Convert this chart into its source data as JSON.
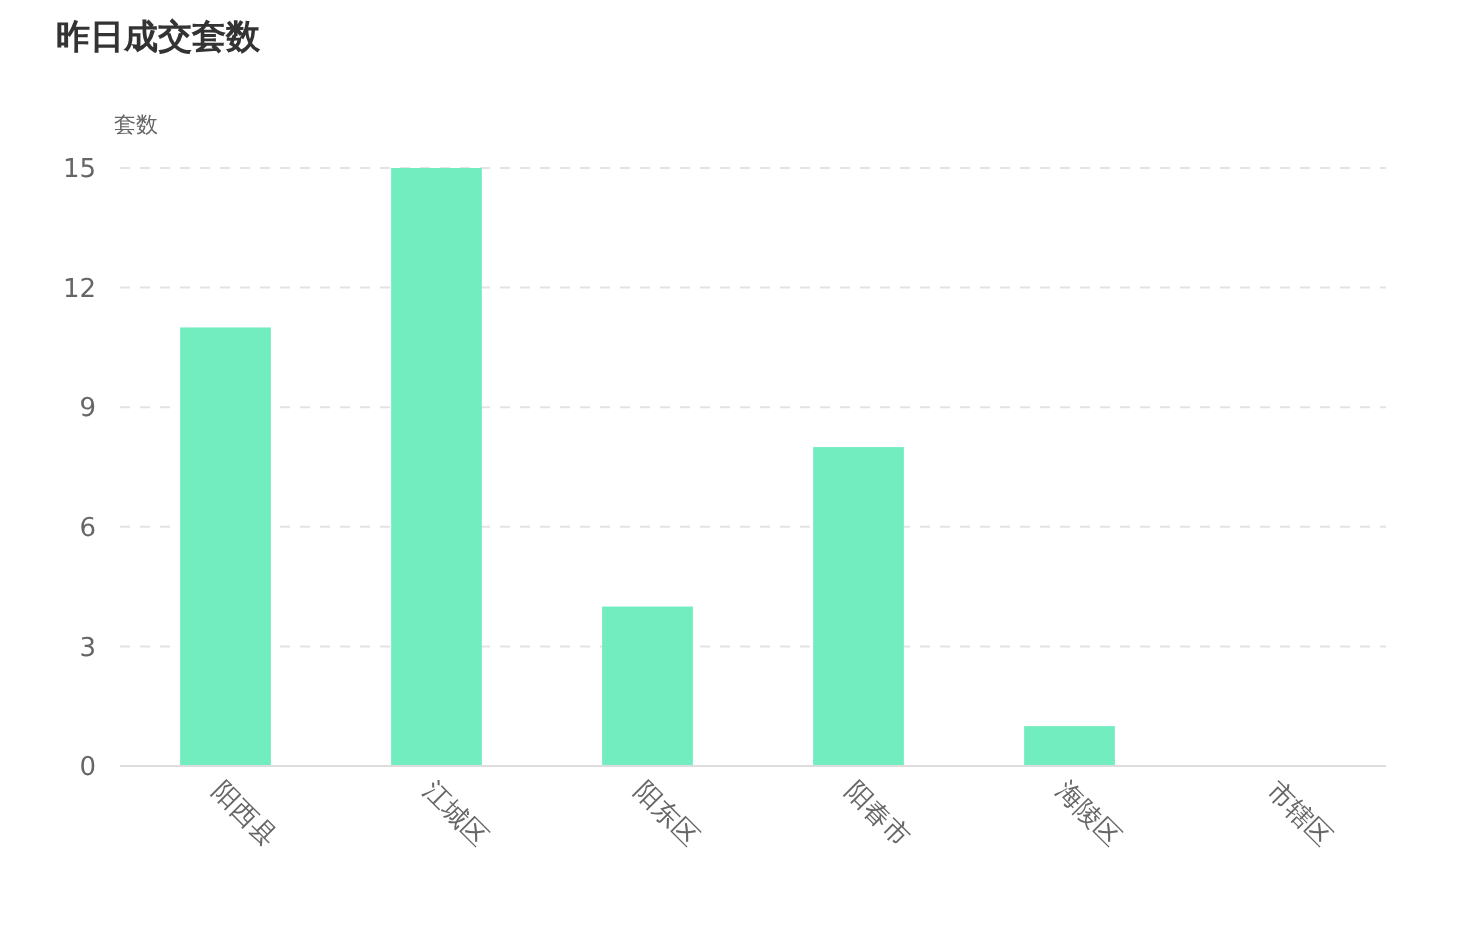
{
  "chart_data": {
    "type": "bar",
    "title": "昨日成交套数",
    "ylabel": "套数",
    "categories": [
      "阳西县",
      "江城区",
      "阳东区",
      "阳春市",
      "海陵区",
      "市辖区"
    ],
    "values": [
      11,
      15,
      4,
      8,
      1,
      0
    ],
    "color": "#72edbf",
    "ylim": [
      0,
      15
    ],
    "yticks": [
      0,
      3,
      6,
      9,
      12,
      15
    ],
    "grid": "y"
  }
}
